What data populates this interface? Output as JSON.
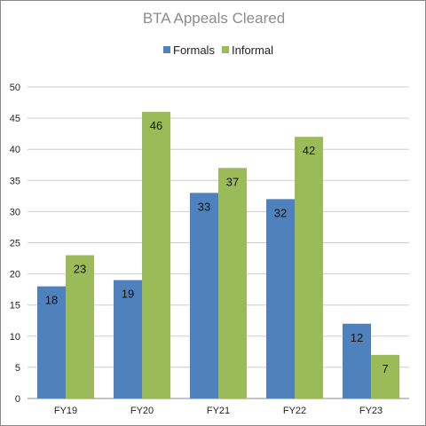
{
  "chart_data": {
    "type": "bar",
    "title": "BTA Appeals Cleared",
    "categories": [
      "FY19",
      "FY20",
      "FY21",
      "FY22",
      "FY23"
    ],
    "series": [
      {
        "name": "Formals",
        "values": [
          18,
          19,
          33,
          32,
          12
        ],
        "color": "#4f81bd"
      },
      {
        "name": "Informal",
        "values": [
          23,
          46,
          37,
          42,
          7
        ],
        "color": "#9bbb59"
      }
    ],
    "ylim": [
      0,
      50
    ],
    "yticks": [
      0,
      5,
      10,
      15,
      20,
      25,
      30,
      35,
      40,
      45,
      50
    ],
    "xlabel": "",
    "ylabel": "",
    "grid": true,
    "legend": "top-center"
  }
}
